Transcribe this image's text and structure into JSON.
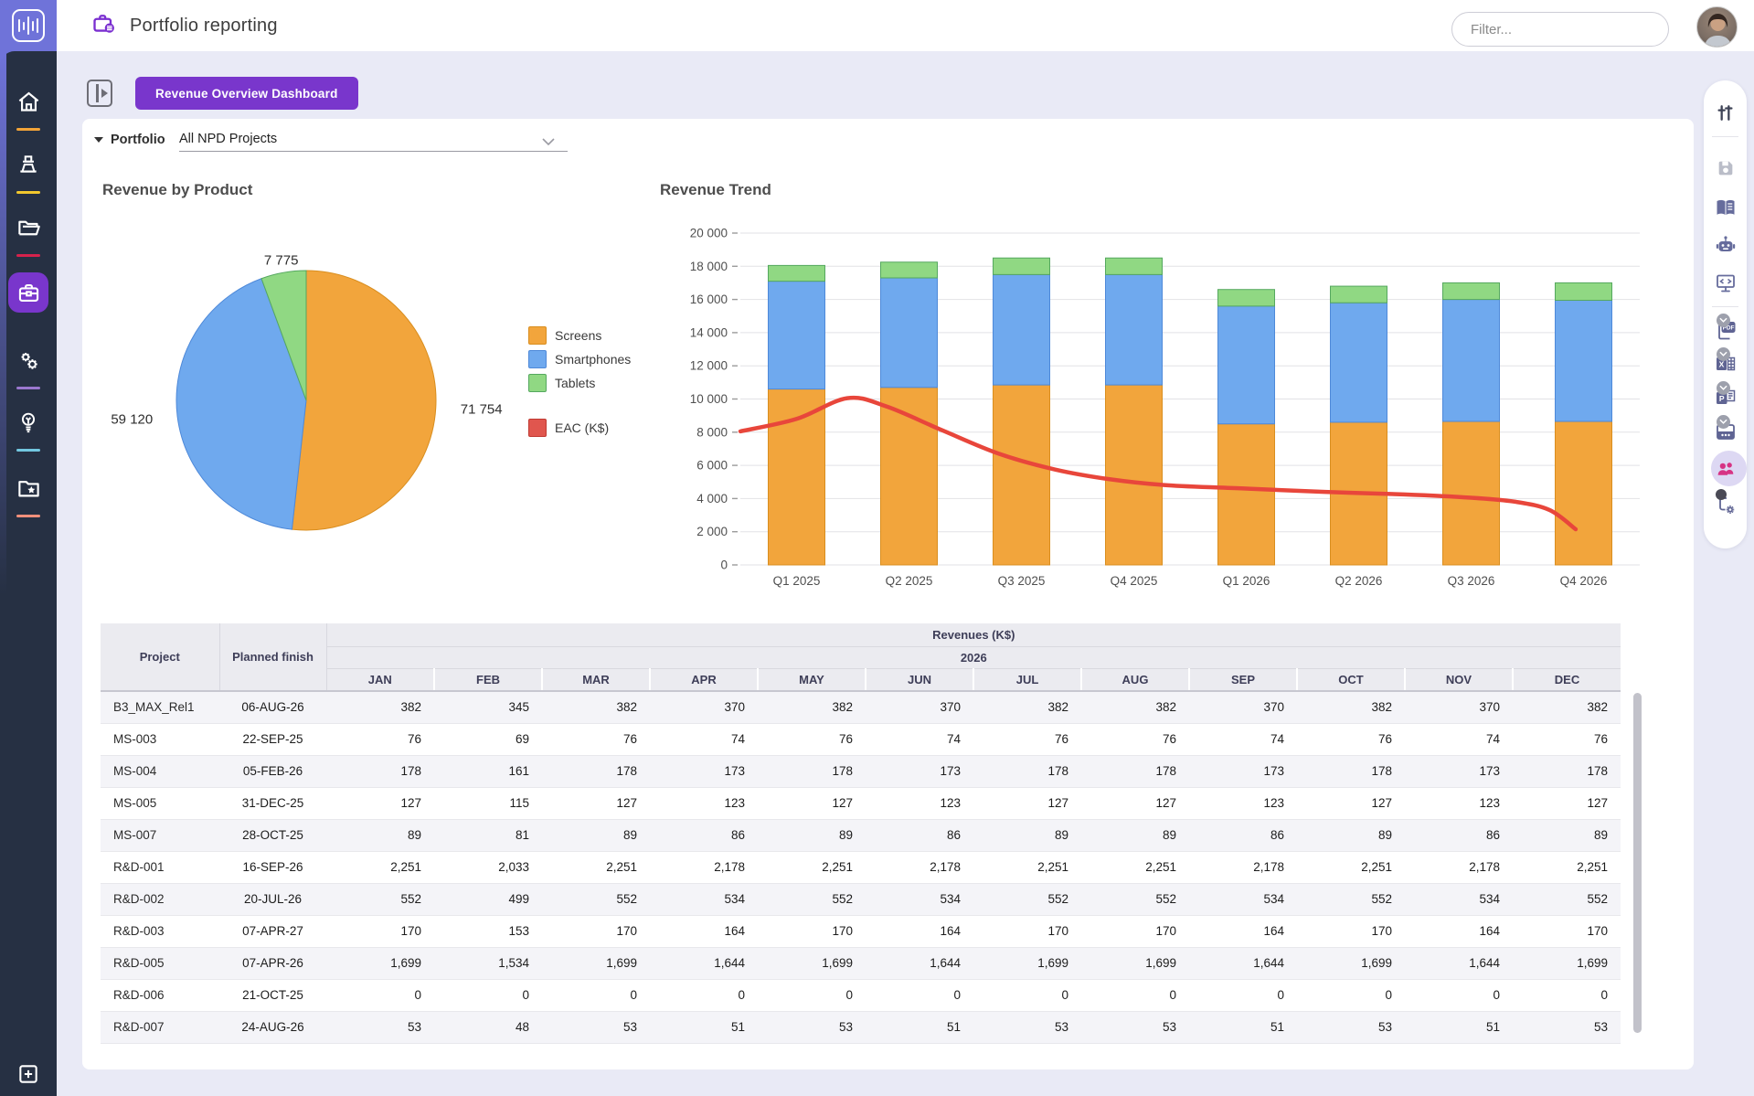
{
  "header": {
    "title": "Portfolio reporting",
    "filter_placeholder": "Filter...",
    "icons": [
      "equalizer-logo-icon",
      "portfolio-briefcase-icon",
      "avatar"
    ]
  },
  "toolbar": {
    "panel_toggle_icon": "expand-panel-icon",
    "dashboard_button_label": "Revenue Overview Dashboard"
  },
  "filter_bar": {
    "portfolio_label": "Portfolio",
    "portfolio_value": "All NPD Projects"
  },
  "left_nav": {
    "items": [
      {
        "name": "home",
        "underline_color": "#F2A338",
        "active": false
      },
      {
        "name": "stage-gate",
        "underline_color": "#F2C72E",
        "active": false
      },
      {
        "name": "projects-folder",
        "underline_color": "#D6224C",
        "active": false
      },
      {
        "name": "portfolio-briefcase",
        "underline_color": null,
        "active": true,
        "active_bg": "#7936CC"
      },
      {
        "name": "settings-gears",
        "underline_color": "#9A77CF",
        "active": false
      },
      {
        "name": "ideas-lightbulb",
        "underline_color": "#72C7E0",
        "active": false
      },
      {
        "name": "favorites-folder-star",
        "underline_color": "#F4907B",
        "active": false
      },
      {
        "name": "add-new",
        "underline_color": "#ABABB5",
        "active": false
      }
    ]
  },
  "right_toolbar": {
    "items": [
      "adjust-sliders",
      "save",
      "knowledge-book",
      "assistant-robot",
      "presentation-display",
      "export-pdf",
      "export-excel",
      "export-powerpoint",
      "export-schedule",
      "share-people",
      "workflow-settings"
    ],
    "active_item": "share-people",
    "glyphs": {
      "pdf": "PDF",
      "excel": "X",
      "ppt": "P"
    }
  },
  "chart_data": [
    {
      "type": "pie",
      "title": "Revenue by Product",
      "slices": [
        {
          "label": "Screens",
          "value": 71754,
          "display": "71 754",
          "color": "#F2A53C",
          "edge": "#D98E1F"
        },
        {
          "label": "Smartphones",
          "value": 59120,
          "display": "59 120",
          "color": "#6FA9EE",
          "edge": "#4E89D9"
        },
        {
          "label": "Tablets",
          "value": 7775,
          "display": "7 775",
          "color": "#90D883",
          "edge": "#55A85F"
        }
      ],
      "start_angle_deg": 0,
      "legend_position": "right-of-pie",
      "legend_extra": {
        "label": "EAC (K$)",
        "color": "#E0564E",
        "edge": "#C03A32"
      }
    },
    {
      "type": "bar-line",
      "title": "Revenue Trend",
      "categories": [
        "Q1 2025",
        "Q2 2025",
        "Q3 2025",
        "Q4 2025",
        "Q1 2026",
        "Q2 2026",
        "Q3 2026",
        "Q4 2026"
      ],
      "stacked_series": [
        {
          "name": "Screens",
          "color": "#F2A53C",
          "edge": "#D98E1F",
          "values": [
            10600,
            10700,
            10850,
            10850,
            8500,
            8600,
            8650,
            8650
          ]
        },
        {
          "name": "Smartphones",
          "color": "#6FA9EE",
          "edge": "#4E89D9",
          "values": [
            6500,
            6600,
            6650,
            6650,
            7100,
            7200,
            7350,
            7300
          ]
        },
        {
          "name": "Tablets",
          "color": "#90D883",
          "edge": "#55A85F",
          "values": [
            950,
            950,
            1000,
            1000,
            1000,
            1000,
            1000,
            1050
          ]
        }
      ],
      "line_series": {
        "name": "EAC (K$)",
        "color": "#E8463B",
        "points": [
          [
            -0.5,
            8050
          ],
          [
            0,
            8800
          ],
          [
            0.45,
            10050
          ],
          [
            0.8,
            9550
          ],
          [
            1.3,
            8100
          ],
          [
            1.8,
            6700
          ],
          [
            2.3,
            5750
          ],
          [
            2.8,
            5150
          ],
          [
            3.3,
            4800
          ],
          [
            4,
            4600
          ],
          [
            4.7,
            4400
          ],
          [
            5.4,
            4250
          ],
          [
            6,
            4050
          ],
          [
            6.4,
            3800
          ],
          [
            6.7,
            3300
          ],
          [
            6.93,
            2150
          ]
        ]
      },
      "ylim": [
        0,
        20000
      ],
      "ytick": 2000,
      "grid": "horizontal",
      "legend_position": "shared-left"
    }
  ],
  "table": {
    "col_project": "Project",
    "col_planned": "Planned finish",
    "group_header": "Revenues (K$)",
    "year_header": "2026",
    "months": [
      "JAN",
      "FEB",
      "MAR",
      "APR",
      "MAY",
      "JUN",
      "JUL",
      "AUG",
      "SEP",
      "OCT",
      "NOV",
      "DEC"
    ],
    "rows": [
      {
        "project": "B3_MAX_Rel1",
        "planned": "06-AUG-26",
        "values": [
          "382",
          "345",
          "382",
          "370",
          "382",
          "370",
          "382",
          "382",
          "370",
          "382",
          "370",
          "382"
        ]
      },
      {
        "project": "MS-003",
        "planned": "22-SEP-25",
        "values": [
          "76",
          "69",
          "76",
          "74",
          "76",
          "74",
          "76",
          "76",
          "74",
          "76",
          "74",
          "76"
        ]
      },
      {
        "project": "MS-004",
        "planned": "05-FEB-26",
        "values": [
          "178",
          "161",
          "178",
          "173",
          "178",
          "173",
          "178",
          "178",
          "173",
          "178",
          "173",
          "178"
        ]
      },
      {
        "project": "MS-005",
        "planned": "31-DEC-25",
        "values": [
          "127",
          "115",
          "127",
          "123",
          "127",
          "123",
          "127",
          "127",
          "123",
          "127",
          "123",
          "127"
        ]
      },
      {
        "project": "MS-007",
        "planned": "28-OCT-25",
        "values": [
          "89",
          "81",
          "89",
          "86",
          "89",
          "86",
          "89",
          "89",
          "86",
          "89",
          "86",
          "89"
        ]
      },
      {
        "project": "R&D-001",
        "planned": "16-SEP-26",
        "values": [
          "2,251",
          "2,033",
          "2,251",
          "2,178",
          "2,251",
          "2,178",
          "2,251",
          "2,251",
          "2,178",
          "2,251",
          "2,178",
          "2,251"
        ]
      },
      {
        "project": "R&D-002",
        "planned": "20-JUL-26",
        "values": [
          "552",
          "499",
          "552",
          "534",
          "552",
          "534",
          "552",
          "552",
          "534",
          "552",
          "534",
          "552"
        ]
      },
      {
        "project": "R&D-003",
        "planned": "07-APR-27",
        "values": [
          "170",
          "153",
          "170",
          "164",
          "170",
          "164",
          "170",
          "170",
          "164",
          "170",
          "164",
          "170"
        ]
      },
      {
        "project": "R&D-005",
        "planned": "07-APR-26",
        "values": [
          "1,699",
          "1,534",
          "1,699",
          "1,644",
          "1,699",
          "1,644",
          "1,699",
          "1,699",
          "1,644",
          "1,699",
          "1,644",
          "1,699"
        ]
      },
      {
        "project": "R&D-006",
        "planned": "21-OCT-25",
        "values": [
          "0",
          "0",
          "0",
          "0",
          "0",
          "0",
          "0",
          "0",
          "0",
          "0",
          "0",
          "0"
        ]
      },
      {
        "project": "R&D-007",
        "planned": "24-AUG-26",
        "values": [
          "53",
          "48",
          "53",
          "51",
          "53",
          "51",
          "53",
          "53",
          "51",
          "53",
          "51",
          "53"
        ]
      }
    ]
  },
  "colors": {
    "accent_purple": "#7936CC",
    "brand_purple": "#6F73D9",
    "sidebar_navy": "#263043",
    "background_lavender": "#E9EAF6",
    "eac_line_red": "#E8463B",
    "active_people_pink": "#D63384"
  }
}
